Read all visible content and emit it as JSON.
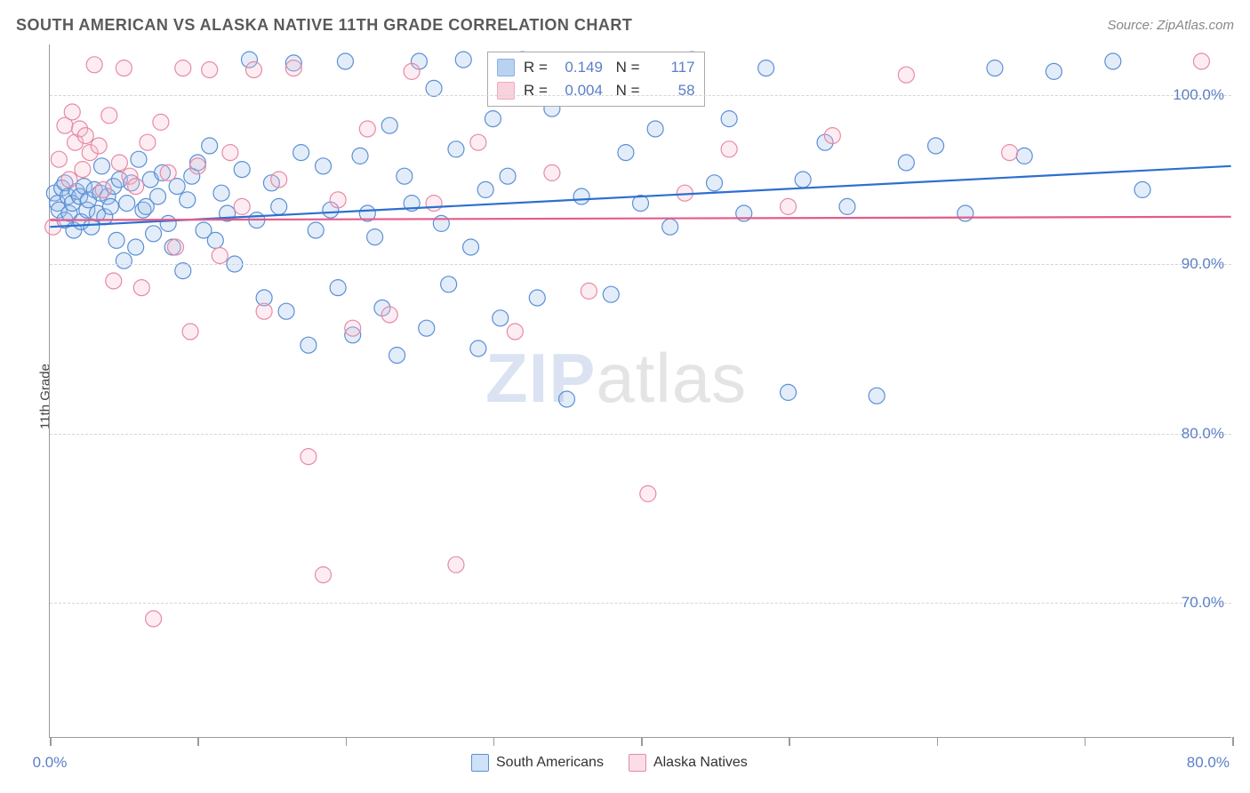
{
  "title": "SOUTH AMERICAN VS ALASKA NATIVE 11TH GRADE CORRELATION CHART",
  "source": "Source: ZipAtlas.com",
  "y_axis_label": "11th Grade",
  "watermark": {
    "zip": "ZIP",
    "atlas": "atlas"
  },
  "chart": {
    "type": "scatter",
    "xlim": [
      0,
      80
    ],
    "ylim": [
      62,
      103
    ],
    "x_ticks_major": [
      0,
      10,
      20,
      30,
      40,
      50,
      60,
      70,
      80
    ],
    "x_tick_labels": {
      "0": "0.0%",
      "80": "80.0%"
    },
    "y_ticks": [
      70,
      80,
      90,
      100
    ],
    "y_tick_labels": [
      "70.0%",
      "80.0%",
      "90.0%",
      "100.0%"
    ],
    "grid_color": "#d5d5d5",
    "axis_color": "#9a9a9a",
    "background": "#ffffff",
    "marker_radius": 9,
    "marker_stroke_width": 1.2,
    "marker_fill_opacity": 0.28,
    "trend_line_width": 2.2,
    "series": [
      {
        "name": "South Americans",
        "color_stroke": "#5b8fd6",
        "color_fill": "#9cc0ea",
        "trend_color": "#2d6fd1",
        "r": "0.149",
        "n": "117",
        "trend": {
          "x0": 0,
          "y0": 92.2,
          "x1": 80,
          "y1": 95.8
        },
        "points": [
          [
            0.3,
            94.2
          ],
          [
            0.5,
            93.6
          ],
          [
            0.6,
            93.2
          ],
          [
            0.8,
            94.5
          ],
          [
            1.0,
            92.6
          ],
          [
            1.0,
            94.8
          ],
          [
            1.2,
            94.0
          ],
          [
            1.3,
            93.0
          ],
          [
            1.5,
            93.6
          ],
          [
            1.6,
            92.0
          ],
          [
            1.8,
            94.3
          ],
          [
            2.0,
            94.0
          ],
          [
            2.1,
            92.5
          ],
          [
            2.3,
            94.6
          ],
          [
            2.5,
            93.2
          ],
          [
            2.6,
            93.8
          ],
          [
            2.8,
            92.2
          ],
          [
            3.0,
            94.4
          ],
          [
            3.2,
            93.0
          ],
          [
            3.4,
            94.2
          ],
          [
            3.5,
            95.8
          ],
          [
            3.7,
            92.8
          ],
          [
            3.9,
            94.0
          ],
          [
            4.1,
            93.4
          ],
          [
            4.3,
            94.6
          ],
          [
            4.5,
            91.4
          ],
          [
            4.7,
            95.0
          ],
          [
            5.0,
            90.2
          ],
          [
            5.2,
            93.6
          ],
          [
            5.5,
            94.8
          ],
          [
            5.8,
            91.0
          ],
          [
            6.0,
            96.2
          ],
          [
            6.3,
            93.2
          ],
          [
            6.5,
            93.4
          ],
          [
            6.8,
            95.0
          ],
          [
            7.0,
            91.8
          ],
          [
            7.3,
            94.0
          ],
          [
            7.6,
            95.4
          ],
          [
            8.0,
            92.4
          ],
          [
            8.3,
            91.0
          ],
          [
            8.6,
            94.6
          ],
          [
            9.0,
            89.6
          ],
          [
            9.3,
            93.8
          ],
          [
            9.6,
            95.2
          ],
          [
            10.0,
            96.0
          ],
          [
            10.4,
            92.0
          ],
          [
            10.8,
            97.0
          ],
          [
            11.2,
            91.4
          ],
          [
            11.6,
            94.2
          ],
          [
            12.0,
            93.0
          ],
          [
            12.5,
            90.0
          ],
          [
            13.0,
            95.6
          ],
          [
            13.5,
            102.1
          ],
          [
            14.0,
            92.6
          ],
          [
            14.5,
            88.0
          ],
          [
            15.0,
            94.8
          ],
          [
            15.5,
            93.4
          ],
          [
            16.0,
            87.2
          ],
          [
            16.5,
            101.9
          ],
          [
            17.0,
            96.6
          ],
          [
            17.5,
            85.2
          ],
          [
            18.0,
            92.0
          ],
          [
            18.5,
            95.8
          ],
          [
            19.0,
            93.2
          ],
          [
            19.5,
            88.6
          ],
          [
            20.0,
            102.0
          ],
          [
            20.5,
            85.8
          ],
          [
            21.0,
            96.4
          ],
          [
            21.5,
            93.0
          ],
          [
            22.0,
            91.6
          ],
          [
            22.5,
            87.4
          ],
          [
            23.0,
            98.2
          ],
          [
            23.5,
            84.6
          ],
          [
            24.0,
            95.2
          ],
          [
            24.5,
            93.6
          ],
          [
            25.0,
            102.0
          ],
          [
            25.5,
            86.2
          ],
          [
            26.0,
            100.4
          ],
          [
            26.5,
            92.4
          ],
          [
            27.0,
            88.8
          ],
          [
            27.5,
            96.8
          ],
          [
            28.0,
            102.1
          ],
          [
            28.5,
            91.0
          ],
          [
            29.0,
            85.0
          ],
          [
            29.5,
            94.4
          ],
          [
            30.0,
            98.6
          ],
          [
            30.5,
            86.8
          ],
          [
            31.0,
            95.2
          ],
          [
            32.0,
            102.1
          ],
          [
            33.0,
            88.0
          ],
          [
            34.0,
            99.2
          ],
          [
            35.0,
            82.0
          ],
          [
            36.0,
            94.0
          ],
          [
            37.0,
            101.8
          ],
          [
            38.0,
            88.2
          ],
          [
            39.0,
            96.6
          ],
          [
            40.0,
            93.6
          ],
          [
            41.0,
            98.0
          ],
          [
            42.0,
            92.2
          ],
          [
            43.5,
            102.1
          ],
          [
            45.0,
            94.8
          ],
          [
            46.0,
            98.6
          ],
          [
            47.0,
            93.0
          ],
          [
            48.5,
            101.6
          ],
          [
            50.0,
            82.4
          ],
          [
            51.0,
            95.0
          ],
          [
            52.5,
            97.2
          ],
          [
            54.0,
            93.4
          ],
          [
            56.0,
            82.2
          ],
          [
            58.0,
            96.0
          ],
          [
            60.0,
            97.0
          ],
          [
            62.0,
            93.0
          ],
          [
            64.0,
            101.6
          ],
          [
            66.0,
            96.4
          ],
          [
            68.0,
            101.4
          ],
          [
            72.0,
            102.0
          ],
          [
            74.0,
            94.4
          ]
        ]
      },
      {
        "name": "Alaska Natives",
        "color_stroke": "#e68aa5",
        "color_fill": "#f7bfd0",
        "trend_color": "#e45b8a",
        "r": "0.004",
        "n": "58",
        "trend": {
          "x0": 0,
          "y0": 92.6,
          "x1": 80,
          "y1": 92.8
        },
        "points": [
          [
            0.2,
            92.2
          ],
          [
            0.6,
            96.2
          ],
          [
            1.0,
            98.2
          ],
          [
            1.3,
            95.0
          ],
          [
            1.5,
            99.0
          ],
          [
            1.7,
            97.2
          ],
          [
            2.0,
            98.0
          ],
          [
            2.2,
            95.6
          ],
          [
            2.4,
            97.6
          ],
          [
            2.7,
            96.6
          ],
          [
            3.0,
            101.8
          ],
          [
            3.3,
            97.0
          ],
          [
            3.6,
            94.4
          ],
          [
            4.0,
            98.8
          ],
          [
            4.3,
            89.0
          ],
          [
            4.7,
            96.0
          ],
          [
            5.0,
            101.6
          ],
          [
            5.4,
            95.2
          ],
          [
            5.8,
            94.6
          ],
          [
            6.2,
            88.6
          ],
          [
            6.6,
            97.2
          ],
          [
            7.0,
            69.0
          ],
          [
            7.5,
            98.4
          ],
          [
            8.0,
            95.4
          ],
          [
            8.5,
            91.0
          ],
          [
            9.0,
            101.6
          ],
          [
            9.5,
            86.0
          ],
          [
            10.0,
            95.8
          ],
          [
            10.8,
            101.5
          ],
          [
            11.5,
            90.5
          ],
          [
            12.2,
            96.6
          ],
          [
            13.0,
            93.4
          ],
          [
            13.8,
            101.5
          ],
          [
            14.5,
            87.2
          ],
          [
            15.5,
            95.0
          ],
          [
            16.5,
            101.6
          ],
          [
            17.5,
            78.6
          ],
          [
            18.5,
            71.6
          ],
          [
            19.5,
            93.8
          ],
          [
            20.5,
            86.2
          ],
          [
            21.5,
            98.0
          ],
          [
            23.0,
            87.0
          ],
          [
            24.5,
            101.4
          ],
          [
            26.0,
            93.6
          ],
          [
            27.5,
            72.2
          ],
          [
            29.0,
            97.2
          ],
          [
            31.5,
            86.0
          ],
          [
            34.0,
            95.4
          ],
          [
            36.5,
            88.4
          ],
          [
            38.0,
            101.4
          ],
          [
            40.5,
            76.4
          ],
          [
            43.0,
            94.2
          ],
          [
            46.0,
            96.8
          ],
          [
            50.0,
            93.4
          ],
          [
            53.0,
            97.6
          ],
          [
            58.0,
            101.2
          ],
          [
            65.0,
            96.6
          ],
          [
            78.0,
            102.0
          ]
        ]
      }
    ]
  },
  "bottom_legend": [
    {
      "label": "South Americans",
      "stroke": "#5b8fd6",
      "fill": "#cfe1f7"
    },
    {
      "label": "Alaska Natives",
      "stroke": "#e68aa5",
      "fill": "#fadde7"
    }
  ]
}
